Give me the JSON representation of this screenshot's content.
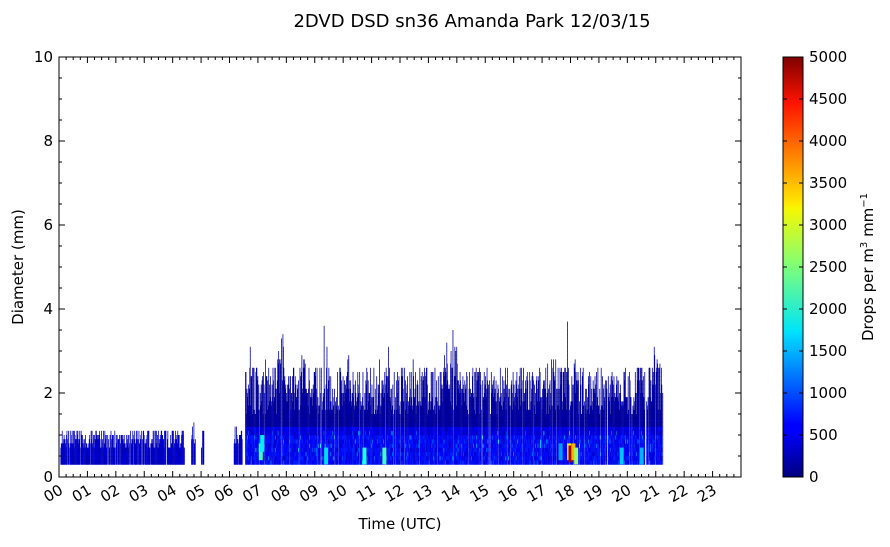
{
  "chart_data": {
    "type": "heatmap",
    "title": "2DVD DSD sn36 Amanda Park 12/03/15",
    "xlabel": "Time (UTC)",
    "ylabel": "Diameter (mm)",
    "xlim": [
      0,
      24
    ],
    "ylim": [
      0,
      10
    ],
    "x_ticks": [
      "00",
      "01",
      "02",
      "03",
      "04",
      "05",
      "06",
      "07",
      "08",
      "09",
      "10",
      "11",
      "12",
      "13",
      "14",
      "15",
      "16",
      "17",
      "18",
      "19",
      "20",
      "21",
      "22",
      "23"
    ],
    "y_ticks": [
      "0",
      "2",
      "4",
      "6",
      "8",
      "10"
    ],
    "colorbar": {
      "label": "Drops per m³ mm⁻¹",
      "label_main": "Drops per m",
      "label_sup1": "3",
      "label_mid": " mm",
      "label_sup2": "−1",
      "range": [
        0,
        5000
      ],
      "ticks": [
        "0",
        "500",
        "1000",
        "1500",
        "2000",
        "2500",
        "3000",
        "3500",
        "4000",
        "4500",
        "5000"
      ],
      "colormap": "jet"
    },
    "rain_segments": [
      {
        "start": 0.05,
        "end": 4.4,
        "top_mm": 1.1
      },
      {
        "start": 4.65,
        "end": 4.8,
        "top_mm": 1.3
      },
      {
        "start": 5.0,
        "end": 5.1,
        "top_mm": 1.1
      },
      {
        "start": 6.15,
        "end": 6.45,
        "top_mm": 1.2
      },
      {
        "start": 6.55,
        "end": 21.25,
        "top_mm": 2.6
      }
    ],
    "hotspots": [
      {
        "hour": 7.1,
        "mm": 0.6,
        "value": 2200
      },
      {
        "hour": 7.15,
        "mm": 0.8,
        "value": 1800
      },
      {
        "hour": 9.4,
        "mm": 0.5,
        "value": 1700
      },
      {
        "hour": 10.75,
        "mm": 0.5,
        "value": 2000
      },
      {
        "hour": 11.45,
        "mm": 0.5,
        "value": 2200
      },
      {
        "hour": 17.65,
        "mm": 0.6,
        "value": 1400
      },
      {
        "hour": 17.95,
        "mm": 0.6,
        "value": 3200
      },
      {
        "hour": 18.0,
        "mm": 0.55,
        "value": 4800
      },
      {
        "hour": 18.1,
        "mm": 0.6,
        "value": 3500
      },
      {
        "hour": 18.2,
        "mm": 0.5,
        "value": 2600
      },
      {
        "hour": 19.8,
        "mm": 0.5,
        "value": 1600
      },
      {
        "hour": 20.5,
        "mm": 0.5,
        "value": 1500
      }
    ]
  }
}
